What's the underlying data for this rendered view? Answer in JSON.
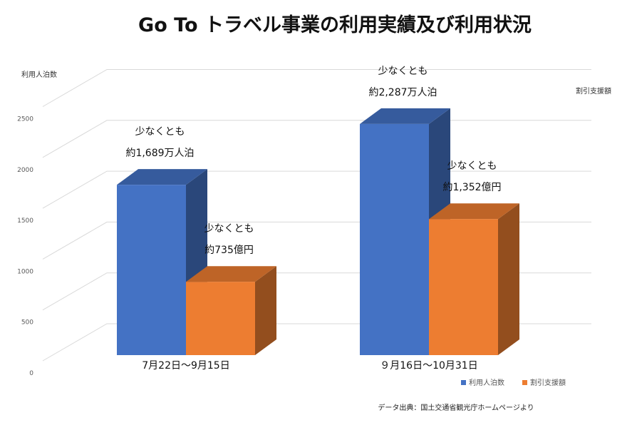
{
  "chart_data": {
    "type": "bar",
    "title": "Go To トラベル事業の利用実績及び利用状況",
    "ylabel_left": "利用人泊数",
    "ylabel_right": "割引支援額",
    "ylim": [
      0,
      2500
    ],
    "yticks": [
      "0",
      "500",
      "1000",
      "1500",
      "2000",
      "2500"
    ],
    "grid": true,
    "legend_position": "bottom-right",
    "categories": [
      "7月22日～9月15日",
      "９月16日～10月31日"
    ],
    "series": [
      {
        "name": "利用人泊数",
        "values": [
          1689,
          2287
        ],
        "color": "#4472c4",
        "labels": [
          [
            "少なくとも",
            "約1,689万人泊"
          ],
          [
            "少なくとも",
            "約2,287万人泊"
          ]
        ]
      },
      {
        "name": "割引支援額",
        "values": [
          735,
          1352
        ],
        "color": "#ed7d31",
        "labels": [
          [
            "少なくとも",
            "約735億円"
          ],
          [
            "少なくとも",
            "約1,352億円"
          ]
        ]
      }
    ],
    "source_note": "データ出典：国土交通省観光庁ホームページより"
  }
}
